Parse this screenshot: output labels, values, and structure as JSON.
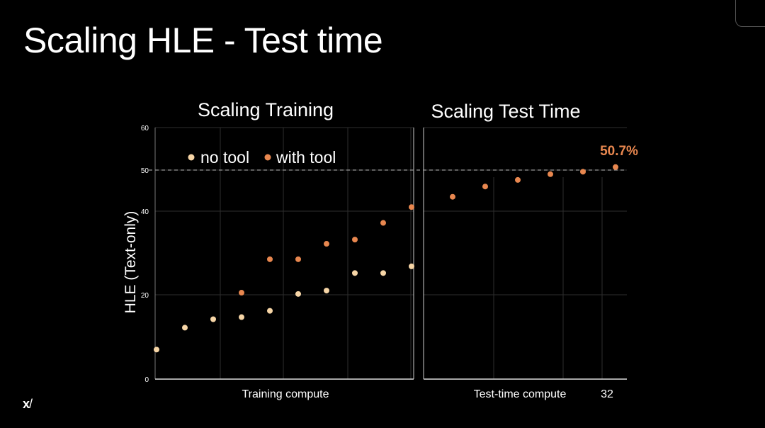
{
  "slide": {
    "title": "Scaling HLE - Test time",
    "logo": "xAI"
  },
  "colors": {
    "background": "#000000",
    "no_tool": "#f6d5a6",
    "with_tool": "#e8874f",
    "grid": "#2e2e2e",
    "dashed": "#9a9a9a"
  },
  "chart_data": {
    "type": "scatter",
    "panels": [
      {
        "title": "Scaling Training",
        "xlabel": "Training compute",
        "x": [
          1,
          2,
          3,
          4,
          5,
          6,
          7,
          8,
          9,
          10
        ],
        "series": [
          {
            "name": "no tool",
            "values": [
              7,
              12.2,
              14.2,
              14.7,
              16.2,
              20.2,
              21,
              25.2,
              25.2,
              26.8
            ]
          },
          {
            "name": "with tool",
            "values": [
              null,
              null,
              null,
              20.5,
              28.5,
              28.5,
              32.2,
              33.2,
              37.2,
              41
            ]
          }
        ]
      },
      {
        "title": "Scaling Test Time",
        "xlabel": "Test-time compute",
        "x_tick_labels": [
          "32"
        ],
        "x": [
          1,
          2,
          3,
          4,
          5,
          6
        ],
        "series": [
          {
            "name": "with tool",
            "values": [
              43.5,
              46,
              47.6,
              49,
              49.6,
              50.7
            ]
          }
        ]
      }
    ],
    "ylabel": "HLE (Text-only)",
    "y_ticks": [
      0,
      20,
      40,
      50,
      60
    ],
    "ylim": [
      0,
      60
    ],
    "y_scale": "piecewise",
    "reference_line": 50,
    "annotation": "50.7%",
    "legend": [
      "no tool",
      "with tool"
    ],
    "legend_position": "top-left",
    "grid": true
  }
}
